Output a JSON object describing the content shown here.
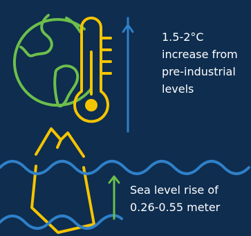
{
  "colors": {
    "background": "#0e2d4f",
    "earth": "#6cbf4b",
    "thermometer": "#f5c400",
    "arrow_up_temperature": "#2f80c8",
    "iceberg": "#f5c400",
    "waves": "#2f80c8",
    "arrow_up_sea": "#6cbf4b",
    "text": "#ffffff"
  },
  "icons": {
    "earth": "globe-icon",
    "thermometer": "thermometer-icon",
    "iceberg": "iceberg-icon",
    "waves": "wave-icon",
    "arrow": "arrow-up-icon"
  },
  "temperature": {
    "lines": [
      "1.5-2°C",
      "increase from",
      "pre-industrial",
      "levels"
    ]
  },
  "sea_level": {
    "lines": [
      "Sea level rise of",
      "0.26-0.55 meter"
    ]
  }
}
